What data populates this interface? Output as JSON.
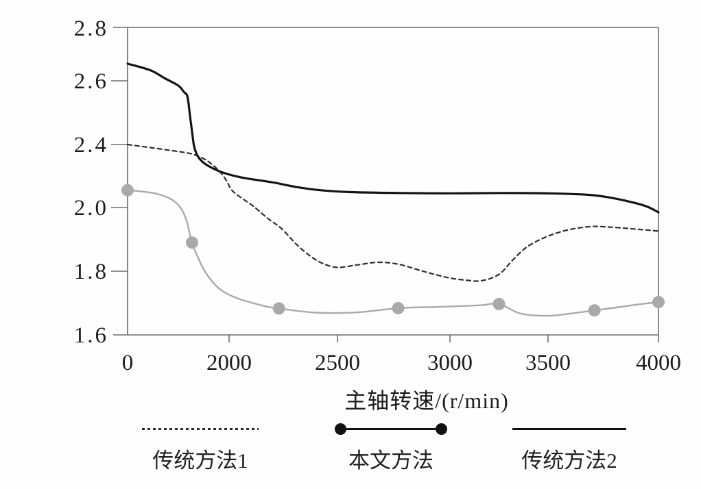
{
  "chart_data": {
    "type": "line",
    "title": "",
    "xlabel": "主轴转速/(r/min)",
    "ylabel": "",
    "x_ticks": [
      0,
      2000,
      2500,
      3000,
      3500,
      4000
    ],
    "x_tick_labels": [
      "0",
      "2000",
      "2500",
      "3000",
      "3500",
      "4000"
    ],
    "y_ticks": [
      2.8,
      2.6,
      2.4,
      2.0,
      1.8,
      1.6
    ],
    "y_tick_labels": [
      "2.8",
      "2.6",
      "2.4",
      "2.0",
      "1.8",
      "1.6"
    ],
    "axis_note": "axes printed non-linearly: x interval 0-2000 occupies one tick gap; y tick sequence jumps from 2.4 to 2.0 between adjacent evenly spaced ticks",
    "grid": false,
    "legend_position": "bottom",
    "series": [
      {
        "id": "traditional-method-1",
        "name": "传统方法1",
        "line_style": "dashed",
        "color": "#2e2e2e",
        "legend_color": "#2a2a2a",
        "points": [
          [
            0,
            2.4
          ],
          [
            460,
            2.38
          ],
          [
            900,
            2.36
          ],
          [
            1200,
            2.345
          ],
          [
            1400,
            2.325
          ],
          [
            1600,
            2.29
          ],
          [
            1810,
            2.23
          ],
          [
            1950,
            2.17
          ],
          [
            2020,
            2.1
          ],
          [
            2110,
            2.01
          ],
          [
            2180,
            1.965
          ],
          [
            2240,
            1.935
          ],
          [
            2310,
            1.885
          ],
          [
            2370,
            1.85
          ],
          [
            2430,
            1.825
          ],
          [
            2500,
            1.812
          ],
          [
            2590,
            1.82
          ],
          [
            2680,
            1.828
          ],
          [
            2770,
            1.822
          ],
          [
            2880,
            1.8
          ],
          [
            2990,
            1.78
          ],
          [
            3080,
            1.772
          ],
          [
            3160,
            1.77
          ],
          [
            3250,
            1.79
          ],
          [
            3320,
            1.835
          ],
          [
            3390,
            1.875
          ],
          [
            3480,
            1.905
          ],
          [
            3580,
            1.928
          ],
          [
            3690,
            1.94
          ],
          [
            3790,
            1.938
          ],
          [
            3900,
            1.932
          ],
          [
            4000,
            1.926
          ]
        ]
      },
      {
        "id": "proposed-method",
        "name": "本文方法",
        "line_style": "solid-with-dot-markers",
        "color": "#a9a9a9",
        "legend_color": "#111111",
        "points": [
          [
            0,
            2.11
          ],
          [
            320,
            2.1
          ],
          [
            600,
            2.085
          ],
          [
            870,
            2.05
          ],
          [
            1040,
            2.0
          ],
          [
            1160,
            1.96
          ],
          [
            1270,
            1.89
          ],
          [
            1410,
            1.835
          ],
          [
            1540,
            1.795
          ],
          [
            1740,
            1.755
          ],
          [
            1950,
            1.73
          ],
          [
            2060,
            1.71
          ],
          [
            2180,
            1.688
          ],
          [
            2230,
            1.683
          ],
          [
            2400,
            1.67
          ],
          [
            2590,
            1.671
          ],
          [
            2770,
            1.684
          ],
          [
            2950,
            1.688
          ],
          [
            3150,
            1.693
          ],
          [
            3250,
            1.697
          ],
          [
            3360,
            1.667
          ],
          [
            3500,
            1.66
          ],
          [
            3600,
            1.667
          ],
          [
            3710,
            1.677
          ],
          [
            3820,
            1.687
          ],
          [
            3910,
            1.696
          ],
          [
            4000,
            1.703
          ]
        ],
        "markers": [
          [
            0,
            2.11
          ],
          [
            1270,
            1.89
          ],
          [
            2230,
            1.683
          ],
          [
            2770,
            1.684
          ],
          [
            3250,
            1.697
          ],
          [
            3710,
            1.677
          ],
          [
            4000,
            1.703
          ]
        ]
      },
      {
        "id": "traditional-method-2",
        "name": "传统方法2",
        "line_style": "solid",
        "color": "#141414",
        "legend_color": "#111111",
        "points": [
          [
            0,
            2.665
          ],
          [
            450,
            2.64
          ],
          [
            730,
            2.61
          ],
          [
            1000,
            2.585
          ],
          [
            1110,
            2.565
          ],
          [
            1180,
            2.55
          ],
          [
            1230,
            2.49
          ],
          [
            1270,
            2.44
          ],
          [
            1310,
            2.39
          ],
          [
            1360,
            2.34
          ],
          [
            1430,
            2.305
          ],
          [
            1560,
            2.27
          ],
          [
            1850,
            2.225
          ],
          [
            2060,
            2.19
          ],
          [
            2200,
            2.16
          ],
          [
            2310,
            2.13
          ],
          [
            2420,
            2.11
          ],
          [
            2560,
            2.098
          ],
          [
            2770,
            2.092
          ],
          [
            3000,
            2.09
          ],
          [
            3260,
            2.092
          ],
          [
            3500,
            2.09
          ],
          [
            3690,
            2.08
          ],
          [
            3800,
            2.058
          ],
          [
            3890,
            2.03
          ],
          [
            3950,
            2.005
          ],
          [
            4000,
            1.985
          ]
        ]
      }
    ]
  }
}
